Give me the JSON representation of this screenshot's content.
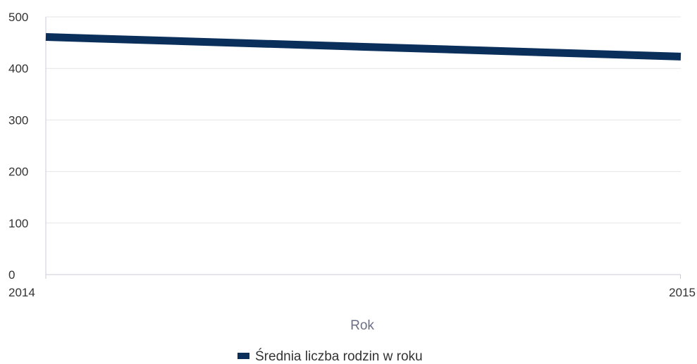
{
  "chart_data": {
    "type": "line",
    "x": [
      "2014",
      "2015"
    ],
    "series": [
      {
        "name": "Średnia liczba rodzin w roku",
        "values": [
          461,
          423
        ],
        "color": "#0b2f5b"
      }
    ],
    "title": "",
    "xlabel": "Rok",
    "ylabel": "",
    "ylim": [
      0,
      500
    ],
    "yticks": [
      0,
      100,
      200,
      300,
      400,
      500
    ],
    "grid": true,
    "legend_position": "bottom-center",
    "gridline_color": "#e6e6e6",
    "axis_color": "#c9ccd8"
  }
}
